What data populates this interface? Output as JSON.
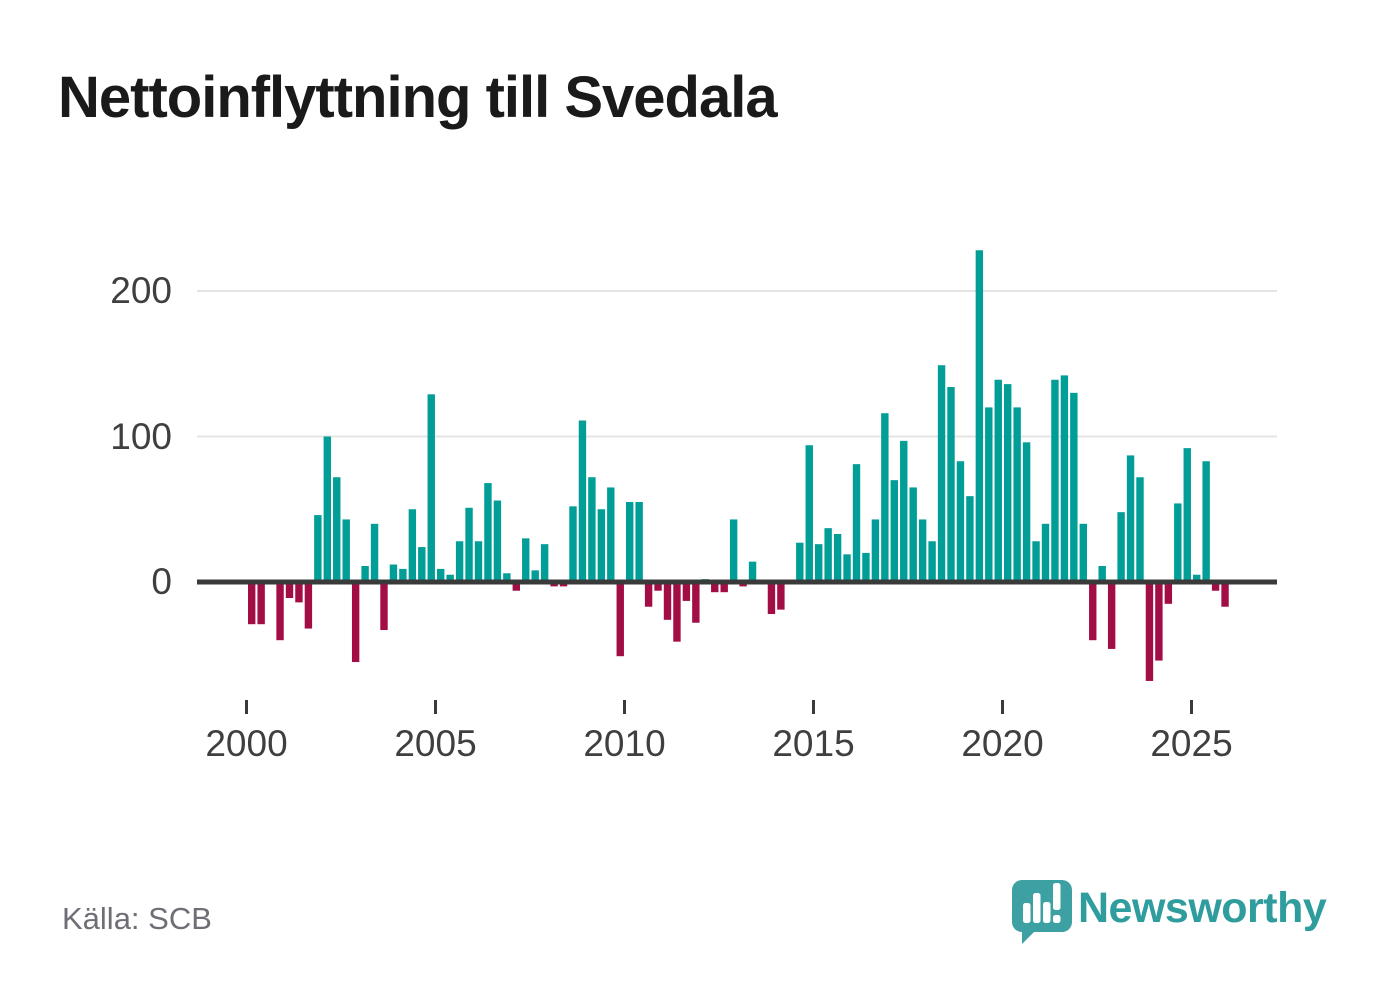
{
  "title": "Nettoinflyttning till Svedala",
  "source": "Källa: SCB",
  "branding": {
    "name": "Newsworthy",
    "logo_icon": "bar-chart-speech-bubble-icon"
  },
  "colors": {
    "positive": "#009e96",
    "negative": "#a30d45",
    "zero_line": "#3a3a3a",
    "gridline": "#e4e4e4",
    "tick": "#3a3a3a",
    "axis_text": "#3f3f3f",
    "source_text": "#6e6e76",
    "title_text": "#1a1a1a",
    "brand_teal": "#2f9c9e",
    "brand_bubble": "#3da0a3"
  },
  "chart_data": {
    "type": "bar",
    "title": "Nettoinflyttning till Svedala",
    "x_start": "2000Q1",
    "x_end": "2025Q4",
    "x_freq": "quarterly",
    "x_tick_labels": [
      "2000",
      "2005",
      "2010",
      "2015",
      "2020",
      "2025"
    ],
    "y_tick_labels": [
      "0",
      "100",
      "200"
    ],
    "y_ticks": [
      0,
      100,
      200
    ],
    "ylim": [
      -75,
      235
    ],
    "grid": "horizontal",
    "legend": "none",
    "series": [
      {
        "name": "Nettoinflyttning",
        "values": [
          -29,
          -29,
          0,
          -40,
          -11,
          -14,
          -32,
          46,
          100,
          72,
          43,
          -55,
          11,
          40,
          -33,
          12,
          9,
          50,
          24,
          129,
          9,
          5,
          28,
          51,
          28,
          68,
          56,
          6,
          -6,
          30,
          8,
          26,
          -3,
          -3,
          52,
          111,
          72,
          50,
          65,
          -51,
          55,
          55,
          -17,
          -6,
          -26,
          -41,
          -13,
          -28,
          2,
          -7,
          -7,
          43,
          -3,
          14,
          0,
          -22,
          -19,
          0,
          27,
          94,
          26,
          37,
          33,
          19,
          81,
          20,
          43,
          116,
          70,
          97,
          65,
          43,
          28,
          149,
          134,
          83,
          59,
          228,
          120,
          139,
          136,
          120,
          96,
          28,
          40,
          139,
          142,
          130,
          40,
          -40,
          11,
          -46,
          48,
          87,
          72,
          -68,
          -54,
          -15,
          54,
          92,
          5,
          83,
          -6,
          -17
        ]
      }
    ]
  }
}
